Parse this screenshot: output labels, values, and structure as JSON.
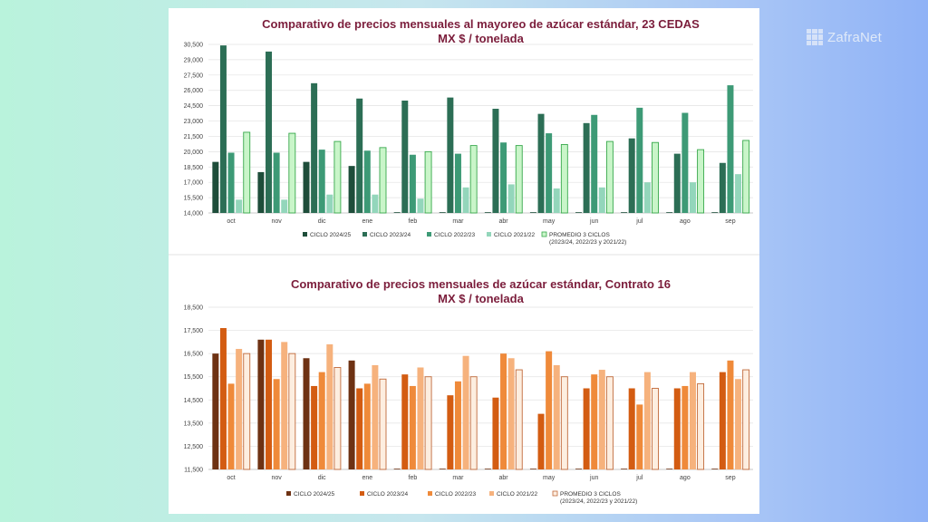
{
  "brand": {
    "name": "ZafraNet",
    "color": "#dfe9f8"
  },
  "charts": [
    {
      "id": "cedas",
      "type": "bar",
      "title": "Comparativo de precios mensuales al mayoreo de azúcar estándar, 23 CEDAS",
      "subtitle": "MX $ / tonelada",
      "categories": [
        "oct",
        "nov",
        "dic",
        "ene",
        "feb",
        "mar",
        "abr",
        "may",
        "jun",
        "jul",
        "ago",
        "sep"
      ],
      "ylim": [
        14000,
        30500
      ],
      "yticks": [
        "30,500",
        "29,000",
        "27,500",
        "26,000",
        "24,500",
        "23,000",
        "21,500",
        "20,000",
        "18,500",
        "17,000",
        "15,500",
        "14,000"
      ],
      "ytick_values": [
        30500,
        29000,
        27500,
        26000,
        24500,
        23000,
        21500,
        20000,
        18500,
        17000,
        15500,
        14000
      ],
      "grid": true,
      "legend_position": "bottom",
      "series": [
        {
          "name": "CICLO 2024/25",
          "color": "#1e4d3a",
          "outline": false,
          "values": [
            19000,
            18000,
            19000,
            18600,
            14000,
            14000,
            14000,
            14000,
            14000,
            14000,
            14000,
            14000
          ]
        },
        {
          "name": "CICLO 2023/24",
          "color": "#2c6e55",
          "outline": false,
          "values": [
            30400,
            29800,
            26700,
            25200,
            25000,
            25300,
            24200,
            23700,
            22800,
            21300,
            19800,
            18900
          ]
        },
        {
          "name": "CICLO 2022/23",
          "color": "#3d9a76",
          "outline": false,
          "values": [
            19900,
            19900,
            20200,
            20100,
            19700,
            19800,
            20900,
            21800,
            23600,
            24300,
            23800,
            26500
          ]
        },
        {
          "name": "CICLO 2021/22",
          "color": "#93d6bb",
          "outline": false,
          "values": [
            15300,
            15300,
            15800,
            15800,
            15400,
            16500,
            16800,
            16400,
            16500,
            17000,
            17000,
            17800
          ]
        },
        {
          "name": "PROMEDIO 3 CICLOS",
          "name_line2": "(2023/24, 2022/23 y 2021/22)",
          "color": "#c9f5c9",
          "stroke": "#37a84b",
          "outline": true,
          "values": [
            21900,
            21800,
            21000,
            20400,
            20000,
            20600,
            20600,
            20700,
            21000,
            20900,
            20200,
            21100
          ]
        }
      ]
    },
    {
      "id": "contrato16",
      "type": "bar",
      "title": "Comparativo de precios mensuales de azúcar estándar, Contrato 16",
      "subtitle": "MX $ / tonelada",
      "categories": [
        "oct",
        "nov",
        "dic",
        "ene",
        "feb",
        "mar",
        "abr",
        "may",
        "jun",
        "jul",
        "ago",
        "sep"
      ],
      "ylim": [
        11500,
        18500
      ],
      "yticks": [
        "18,500",
        "17,500",
        "16,500",
        "15,500",
        "14,500",
        "13,500",
        "12,500",
        "11,500"
      ],
      "ytick_values": [
        18500,
        17500,
        16500,
        15500,
        14500,
        13500,
        12500,
        11500
      ],
      "grid": true,
      "legend_position": "bottom",
      "series": [
        {
          "name": "CICLO 2024/25",
          "color": "#6e3213",
          "outline": false,
          "values": [
            16500,
            17100,
            16300,
            16200,
            11500,
            11500,
            11500,
            11500,
            11500,
            11500,
            11500,
            11500
          ]
        },
        {
          "name": "CICLO 2023/24",
          "color": "#d35c12",
          "outline": false,
          "values": [
            17600,
            17100,
            15100,
            15000,
            15600,
            14700,
            14600,
            13900,
            15000,
            15000,
            15000,
            15700
          ]
        },
        {
          "name": "CICLO 2022/23",
          "color": "#ef8a3a",
          "outline": false,
          "values": [
            15200,
            15400,
            15700,
            15200,
            15100,
            15300,
            16500,
            16600,
            15600,
            14300,
            15100,
            16200
          ]
        },
        {
          "name": "CICLO 2021/22",
          "color": "#f6b27d",
          "outline": false,
          "values": [
            16700,
            17000,
            16900,
            16000,
            15900,
            16400,
            16300,
            16000,
            15800,
            15700,
            15700,
            15400
          ]
        },
        {
          "name": "PROMEDIO 3 CICLOS",
          "name_line2": "(2023/24, 2022/23 y 2021/22)",
          "color": "#fdeee0",
          "stroke": "#c0693a",
          "outline": true,
          "values": [
            16500,
            16500,
            15900,
            15400,
            15500,
            15500,
            15800,
            15500,
            15500,
            15000,
            15200,
            15800
          ]
        }
      ]
    }
  ]
}
